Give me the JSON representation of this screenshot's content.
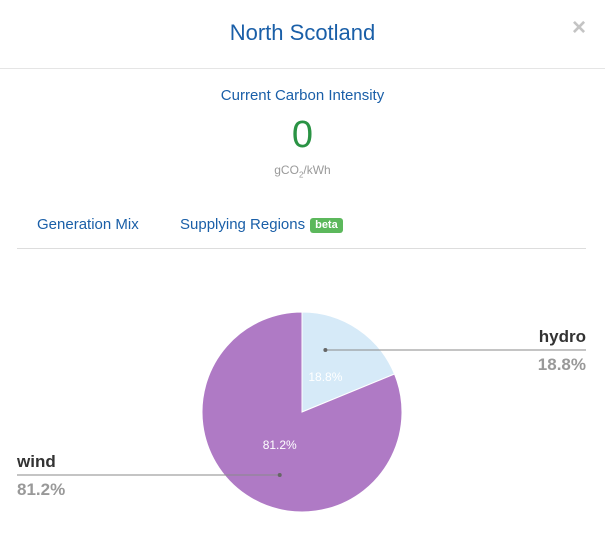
{
  "modal": {
    "title": "North Scotland",
    "close_label": "×"
  },
  "carbon_intensity": {
    "label": "Current Carbon Intensity",
    "value": "0",
    "unit_prefix": "gCO",
    "unit_sub": "2",
    "unit_suffix": "/kWh"
  },
  "tabs": [
    {
      "label": "Generation Mix"
    },
    {
      "label": "Supplying Regions",
      "badge": "beta"
    }
  ],
  "colors": {
    "wind": "#af7ac5",
    "hydro": "#d6eaf8",
    "accent": "#1a5fa8",
    "intensity": "#2a9344"
  },
  "chart_data": {
    "type": "pie",
    "series": [
      {
        "name": "hydro",
        "value": 18.8,
        "label": "18.8%"
      },
      {
        "name": "wind",
        "value": 81.2,
        "label": "81.2%"
      }
    ]
  }
}
